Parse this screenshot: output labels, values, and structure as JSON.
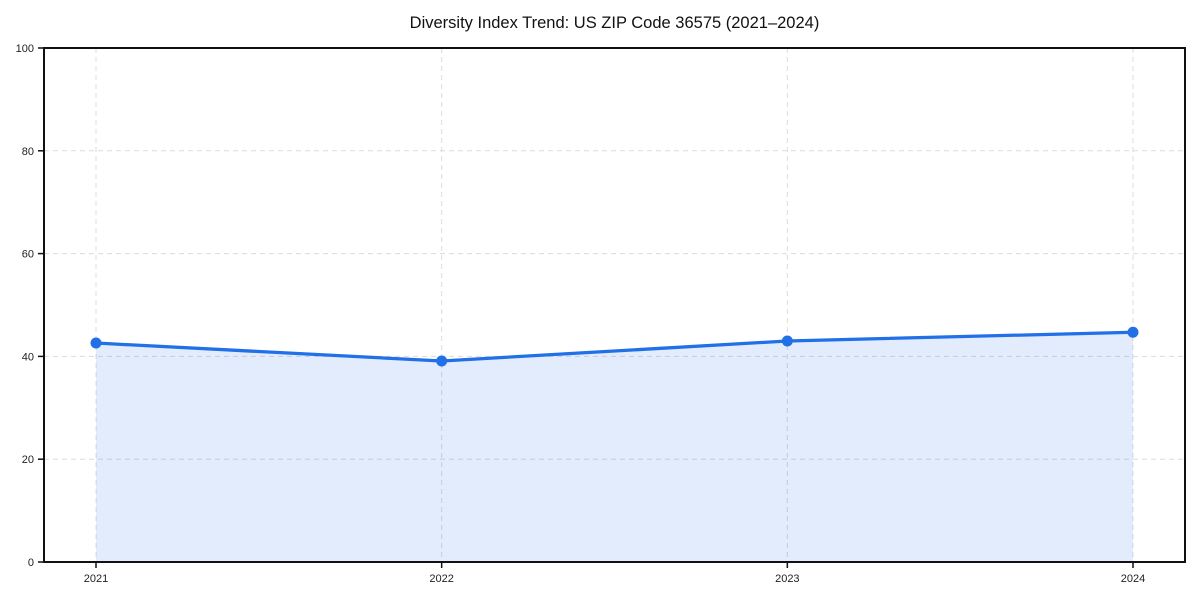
{
  "chart_data": {
    "type": "area",
    "title": "Diversity Index Trend: US ZIP Code 36575 (2021–2024)",
    "categories": [
      "2021",
      "2022",
      "2023",
      "2024"
    ],
    "series": [
      {
        "name": "Diversity Index",
        "values": [
          42.6,
          39.1,
          43.0,
          44.7
        ]
      }
    ],
    "xlabel": "",
    "ylabel": "",
    "ylim": [
      0,
      100
    ],
    "yticks": [
      0,
      20,
      40,
      60,
      80,
      100
    ],
    "grid": true,
    "grid_style": "dashed",
    "legend": "none",
    "colors": {
      "line": "#2170e8",
      "marker": "#2170e8",
      "fill": "rgba(33, 112, 232, 0.13)",
      "gridline": "#dcdcdc",
      "spine": "#111111",
      "tick_label": "#222222",
      "title": "#111111",
      "background": "#ffffff"
    }
  }
}
